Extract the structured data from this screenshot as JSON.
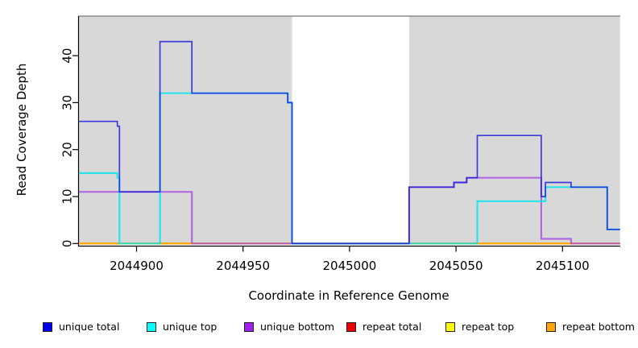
{
  "chart_data": {
    "type": "line",
    "subtype": "step-coverage-plot",
    "title": "",
    "xlabel": "Coordinate in Reference Genome",
    "ylabel": "Read Coverage Depth",
    "xlim": [
      2044873,
      2045127
    ],
    "ylim": [
      0,
      48
    ],
    "xticks": [
      2044900,
      2044950,
      2045000,
      2045050,
      2045100
    ],
    "yticks": [
      0,
      10,
      20,
      30,
      40
    ],
    "grid": false,
    "legend_position": "bottom",
    "background_bands": [
      {
        "name": "shaded-region-left",
        "from": 2044873,
        "to": 2044973,
        "color": "#D8D8D8"
      },
      {
        "name": "shaded-region-right",
        "from": 2045028,
        "to": 2045127,
        "color": "#D8D8D8"
      }
    ],
    "gap_region": {
      "from": 2044973,
      "to": 2045028,
      "color": "#FFFFFF"
    },
    "x_end": 2045127,
    "series": [
      {
        "name": "repeat total",
        "color": "#EE0000",
        "steps": [
          [
            2044873,
            0
          ]
        ]
      },
      {
        "name": "repeat top",
        "color": "#FFFF00",
        "steps": [
          [
            2044873,
            0
          ]
        ]
      },
      {
        "name": "repeat bottom",
        "color": "#FFA500",
        "steps": [
          [
            2044873,
            0
          ]
        ]
      },
      {
        "name": "unique bottom",
        "color": "#A64FE0",
        "steps": [
          [
            2044873,
            11
          ],
          [
            2044926,
            0
          ],
          [
            2045028,
            12
          ],
          [
            2045049,
            13
          ],
          [
            2045055,
            14
          ],
          [
            2045090,
            1
          ],
          [
            2045104,
            0
          ]
        ]
      },
      {
        "name": "unique top",
        "color": "#00E5EE",
        "steps": [
          [
            2044873,
            15
          ],
          [
            2044891,
            14
          ],
          [
            2044892,
            0
          ],
          [
            2044911,
            32
          ],
          [
            2044971,
            30
          ],
          [
            2044973,
            0
          ],
          [
            2045060,
            9
          ],
          [
            2045092,
            12
          ],
          [
            2045121,
            3
          ]
        ]
      },
      {
        "name": "unique total",
        "color": "#2020DD",
        "steps": [
          [
            2044873,
            26
          ],
          [
            2044891,
            25
          ],
          [
            2044892,
            11
          ],
          [
            2044911,
            43
          ],
          [
            2044926,
            32
          ],
          [
            2044971,
            30
          ],
          [
            2044973,
            0
          ],
          [
            2045028,
            12
          ],
          [
            2045049,
            13
          ],
          [
            2045055,
            14
          ],
          [
            2045060,
            23
          ],
          [
            2045090,
            10
          ],
          [
            2045092,
            13
          ],
          [
            2045104,
            12
          ],
          [
            2045121,
            3
          ]
        ]
      }
    ]
  },
  "legend": {
    "items": [
      {
        "label": "unique total",
        "color": "#0000EE"
      },
      {
        "label": "unique top",
        "color": "#00FFFF"
      },
      {
        "label": "unique bottom",
        "color": "#A020F0"
      },
      {
        "label": "repeat total",
        "color": "#EE0000"
      },
      {
        "label": "repeat top",
        "color": "#FFFF00"
      },
      {
        "label": "repeat bottom",
        "color": "#FFA500"
      }
    ]
  },
  "axis": {
    "axis_color": "#000000",
    "top_border_color": "#8C8C8C"
  }
}
